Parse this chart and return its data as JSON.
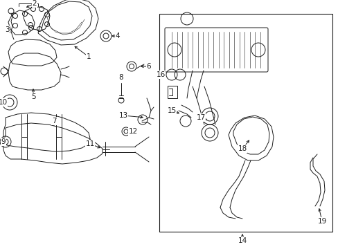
{
  "bg_color": "#ffffff",
  "line_color": "#1a1a1a",
  "fig_width": 4.89,
  "fig_height": 3.6,
  "dpi": 100,
  "lw": 0.7,
  "lw_thin": 0.4,
  "fontsize": 7.5
}
